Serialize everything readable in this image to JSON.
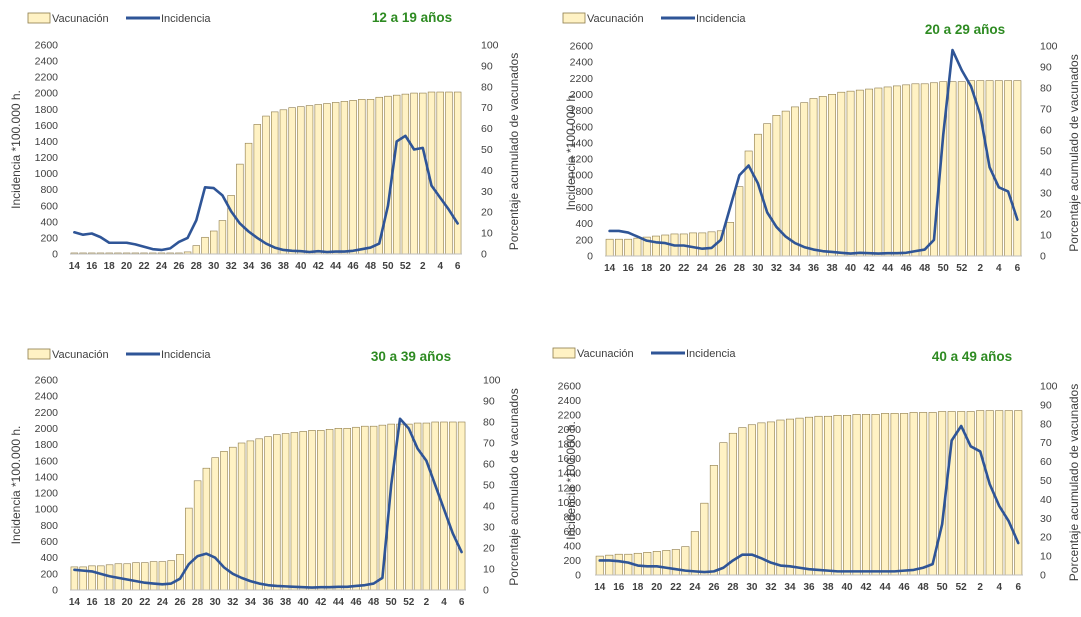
{
  "colors": {
    "bar_fill": "#FFF2C4",
    "bar_stroke": "#8C7A4A",
    "line": "#2F5597",
    "title": "#2E8B22",
    "axis": "#BFBFBF",
    "text": "#404040"
  },
  "chart_data": [
    {
      "type": "bar+line",
      "title": "12 a 19 años",
      "ylabel": "Incidencia *100.000 h.",
      "y2label": "Porcentaje acumulado de vacunados",
      "ylim": [
        0,
        2600
      ],
      "y2lim": [
        0,
        100
      ],
      "yticks": [
        "0",
        "200",
        "400",
        "600",
        "800",
        "1000",
        "1200",
        "1400",
        "1600",
        "1800",
        "2000",
        "2200",
        "2400",
        "2600"
      ],
      "y2ticks": [
        "0",
        "10",
        "20",
        "30",
        "40",
        "50",
        "60",
        "70",
        "80",
        "90",
        "100"
      ],
      "x": [
        "14",
        "15",
        "16",
        "17",
        "18",
        "19",
        "20",
        "21",
        "22",
        "23",
        "24",
        "25",
        "26",
        "27",
        "28",
        "29",
        "30",
        "31",
        "32",
        "33",
        "34",
        "35",
        "36",
        "37",
        "38",
        "39",
        "40",
        "41",
        "42",
        "43",
        "44",
        "45",
        "46",
        "47",
        "48",
        "49",
        "50",
        "51",
        "52",
        "1",
        "2",
        "3",
        "4",
        "5",
        "6"
      ],
      "xticks_shown": [
        "14",
        "16",
        "18",
        "20",
        "22",
        "24",
        "26",
        "28",
        "30",
        "32",
        "34",
        "36",
        "38",
        "40",
        "42",
        "44",
        "46",
        "48",
        "50",
        "52",
        "2",
        "4",
        "6"
      ],
      "legend": [
        "Vacunación",
        "Incidencia"
      ],
      "series": [
        {
          "name": "Vacunación",
          "axis": "right",
          "values": [
            0.5,
            0.5,
            0.5,
            0.5,
            0.5,
            0.5,
            0.5,
            0.5,
            0.5,
            0.5,
            0.5,
            0.5,
            0.5,
            1,
            4,
            8,
            11,
            16,
            28,
            43,
            53,
            62,
            66,
            68,
            69,
            70,
            70.5,
            71,
            71.5,
            72,
            72.5,
            73,
            73.5,
            74,
            74,
            75,
            75.5,
            76,
            76.5,
            77,
            77,
            77.5,
            77.5,
            77.5,
            77.5
          ]
        },
        {
          "name": "Incidencia",
          "axis": "left",
          "values": [
            270,
            240,
            255,
            210,
            140,
            140,
            140,
            120,
            90,
            60,
            50,
            70,
            150,
            200,
            420,
            830,
            820,
            730,
            530,
            380,
            280,
            200,
            130,
            80,
            50,
            40,
            35,
            25,
            35,
            25,
            30,
            30,
            40,
            60,
            80,
            130,
            600,
            1400,
            1470,
            1300,
            1320,
            850,
            700,
            550,
            380
          ]
        }
      ]
    },
    {
      "type": "bar+line",
      "title": "20 a 29 años",
      "ylabel": "Incidencia *100.000 h.",
      "y2label": "Porcentaje acumulado de vacunados",
      "ylim": [
        0,
        2600
      ],
      "y2lim": [
        0,
        100
      ],
      "yticks": [
        "0",
        "200",
        "400",
        "600",
        "800",
        "1000",
        "1200",
        "1400",
        "1600",
        "1800",
        "2000",
        "2200",
        "2400",
        "2600"
      ],
      "y2ticks": [
        "0",
        "10",
        "20",
        "30",
        "40",
        "50",
        "60",
        "70",
        "80",
        "90",
        "100"
      ],
      "x": [
        "14",
        "15",
        "16",
        "17",
        "18",
        "19",
        "20",
        "21",
        "22",
        "23",
        "24",
        "25",
        "26",
        "27",
        "28",
        "29",
        "30",
        "31",
        "32",
        "33",
        "34",
        "35",
        "36",
        "37",
        "38",
        "39",
        "40",
        "41",
        "42",
        "43",
        "44",
        "45",
        "46",
        "47",
        "48",
        "49",
        "50",
        "51",
        "52",
        "1",
        "2",
        "3",
        "4",
        "5",
        "6"
      ],
      "xticks_shown": [
        "14",
        "16",
        "18",
        "20",
        "22",
        "24",
        "26",
        "28",
        "30",
        "32",
        "34",
        "36",
        "38",
        "40",
        "42",
        "44",
        "46",
        "48",
        "50",
        "52",
        "2",
        "4",
        "6"
      ],
      "legend": [
        "Vacunación",
        "Incidencia"
      ],
      "series": [
        {
          "name": "Vacunación",
          "axis": "right",
          "values": [
            8,
            8,
            8,
            8.5,
            9,
            9.5,
            10,
            10.5,
            10.5,
            11,
            11,
            11.5,
            12,
            16,
            33,
            50,
            58,
            63,
            67,
            69,
            71,
            73,
            75,
            76,
            77,
            78,
            78.5,
            79,
            79.5,
            80,
            80.5,
            81,
            81.5,
            82,
            82,
            82.5,
            83,
            83,
            83,
            83.5,
            83.5,
            83.5,
            83.5,
            83.5,
            83.5
          ]
        },
        {
          "name": "Incidencia",
          "axis": "left",
          "values": [
            310,
            310,
            290,
            240,
            190,
            170,
            160,
            130,
            130,
            110,
            90,
            100,
            200,
            600,
            1000,
            1120,
            900,
            540,
            360,
            240,
            160,
            110,
            80,
            60,
            50,
            40,
            30,
            40,
            35,
            30,
            35,
            35,
            40,
            60,
            80,
            200,
            1500,
            2550,
            2300,
            2100,
            1750,
            1100,
            850,
            800,
            450
          ]
        }
      ]
    },
    {
      "type": "bar+line",
      "title": "30 a 39 años",
      "ylabel": "Incidencia *100.000 h.",
      "y2label": "Porcentaje acumulado de vacunados",
      "ylim": [
        0,
        2600
      ],
      "y2lim": [
        0,
        100
      ],
      "yticks": [
        "0",
        "200",
        "400",
        "600",
        "800",
        "1000",
        "1200",
        "1400",
        "1600",
        "1800",
        "2000",
        "2200",
        "2400",
        "2600"
      ],
      "y2ticks": [
        "0",
        "10",
        "20",
        "30",
        "40",
        "50",
        "60",
        "70",
        "80",
        "90",
        "100"
      ],
      "x": [
        "14",
        "15",
        "16",
        "17",
        "18",
        "19",
        "20",
        "21",
        "22",
        "23",
        "24",
        "25",
        "26",
        "27",
        "28",
        "29",
        "30",
        "31",
        "32",
        "33",
        "34",
        "35",
        "36",
        "37",
        "38",
        "39",
        "40",
        "41",
        "42",
        "43",
        "44",
        "45",
        "46",
        "47",
        "48",
        "49",
        "50",
        "51",
        "52",
        "1",
        "2",
        "3",
        "4",
        "5",
        "6"
      ],
      "xticks_shown": [
        "14",
        "16",
        "18",
        "20",
        "22",
        "24",
        "26",
        "28",
        "30",
        "32",
        "34",
        "36",
        "38",
        "40",
        "42",
        "44",
        "46",
        "48",
        "50",
        "52",
        "2",
        "4",
        "6"
      ],
      "legend": [
        "Vacunación",
        "Incidencia"
      ],
      "series": [
        {
          "name": "Vacunación",
          "axis": "right",
          "values": [
            11,
            11,
            11.5,
            11.5,
            12,
            12.5,
            12.5,
            13,
            13,
            13.5,
            13.5,
            14,
            17,
            39,
            52,
            58,
            63,
            66,
            68,
            70,
            71,
            72,
            73,
            74,
            74.5,
            75,
            75.5,
            76,
            76,
            76.5,
            77,
            77,
            77.5,
            78,
            78,
            78.5,
            79,
            79,
            79,
            79.5,
            79.5,
            80,
            80,
            80,
            80
          ]
        },
        {
          "name": "Incidencia",
          "axis": "left",
          "values": [
            250,
            240,
            230,
            200,
            170,
            150,
            130,
            110,
            90,
            80,
            70,
            80,
            140,
            320,
            420,
            450,
            400,
            280,
            200,
            150,
            110,
            80,
            60,
            50,
            45,
            40,
            35,
            30,
            35,
            35,
            40,
            40,
            50,
            60,
            80,
            150,
            1300,
            2120,
            2000,
            1750,
            1600,
            1300,
            1000,
            700,
            470
          ]
        }
      ]
    },
    {
      "type": "bar+line",
      "title": "40 a 49 años",
      "ylabel": "Incidencia *100.000 h.",
      "y2label": "Porcentaje acumulado de vacunados",
      "ylim": [
        0,
        2600
      ],
      "y2lim": [
        0,
        100
      ],
      "yticks": [
        "0",
        "200",
        "400",
        "600",
        "800",
        "1000",
        "1200",
        "1400",
        "1600",
        "1800",
        "2000",
        "2200",
        "2400",
        "2600"
      ],
      "y2ticks": [
        "0",
        "10",
        "20",
        "30",
        "40",
        "50",
        "60",
        "70",
        "80",
        "90",
        "100"
      ],
      "x": [
        "14",
        "15",
        "16",
        "17",
        "18",
        "19",
        "20",
        "21",
        "22",
        "23",
        "24",
        "25",
        "26",
        "27",
        "28",
        "29",
        "30",
        "31",
        "32",
        "33",
        "34",
        "35",
        "36",
        "37",
        "38",
        "39",
        "40",
        "41",
        "42",
        "43",
        "44",
        "45",
        "46",
        "47",
        "48",
        "49",
        "50",
        "51",
        "52",
        "1",
        "2",
        "3",
        "4",
        "5",
        "6"
      ],
      "xticks_shown": [
        "14",
        "16",
        "18",
        "20",
        "22",
        "24",
        "26",
        "28",
        "30",
        "32",
        "34",
        "36",
        "38",
        "40",
        "42",
        "44",
        "46",
        "48",
        "50",
        "52",
        "2",
        "4",
        "6"
      ],
      "legend": [
        "Vacunación",
        "Incidencia"
      ],
      "series": [
        {
          "name": "Vacunación",
          "axis": "right",
          "values": [
            10,
            10.5,
            11,
            11,
            11.5,
            12,
            12.5,
            13,
            13.5,
            15,
            23,
            38,
            58,
            70,
            75,
            78,
            79.5,
            80.5,
            81,
            82,
            82.5,
            83,
            83.5,
            84,
            84,
            84.5,
            84.5,
            85,
            85,
            85,
            85.5,
            85.5,
            85.5,
            86,
            86,
            86,
            86.5,
            86.5,
            86.5,
            86.5,
            87,
            87,
            87,
            87,
            87
          ]
        },
        {
          "name": "Incidencia",
          "axis": "left",
          "values": [
            200,
            200,
            190,
            170,
            130,
            120,
            120,
            100,
            80,
            60,
            50,
            40,
            50,
            100,
            200,
            280,
            280,
            230,
            170,
            130,
            120,
            100,
            80,
            70,
            60,
            50,
            50,
            50,
            50,
            50,
            50,
            50,
            60,
            70,
            100,
            150,
            700,
            1850,
            2050,
            1770,
            1700,
            1250,
            950,
            740,
            440
          ]
        }
      ]
    }
  ]
}
